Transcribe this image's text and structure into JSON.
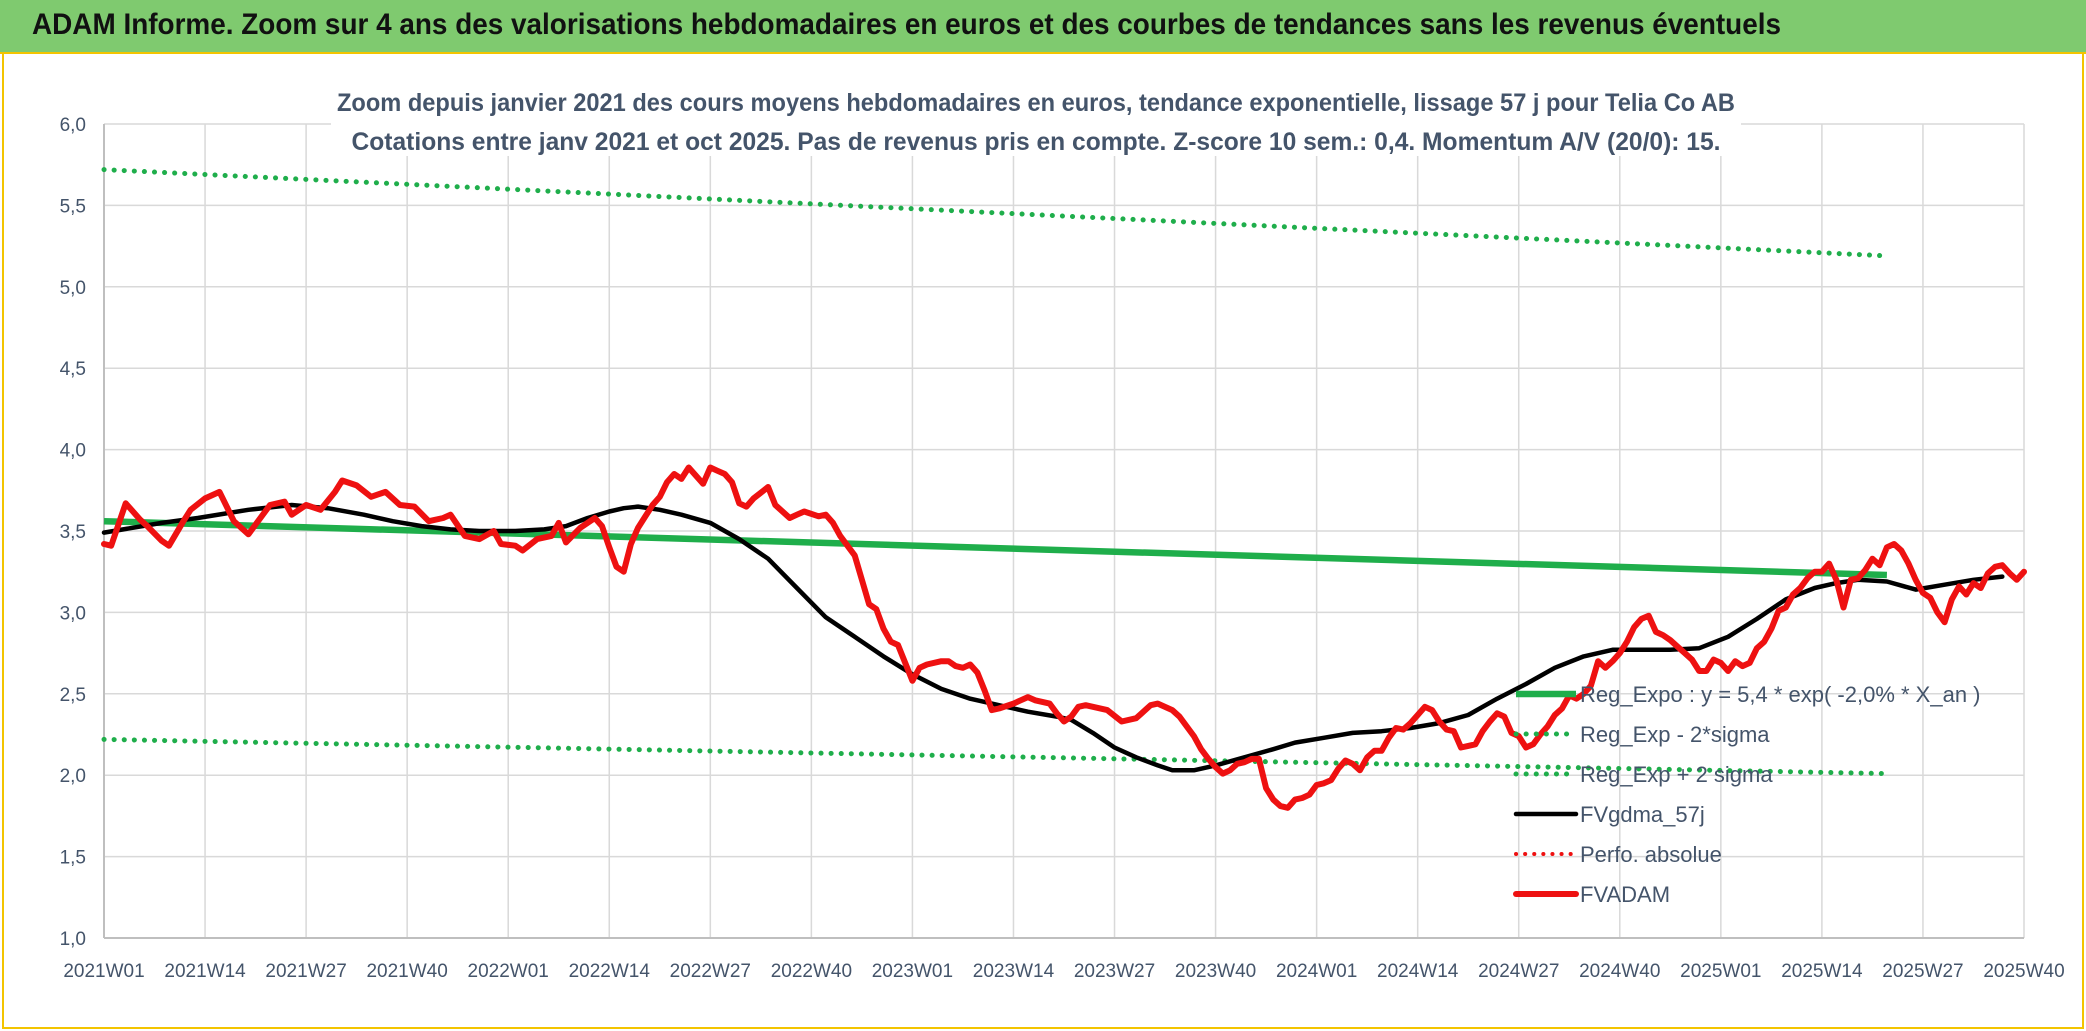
{
  "banner": {
    "title": "ADAM Informe. Zoom sur 4 ans des valorisations hebdomadaires en euros et des courbes de tendances sans les revenus éventuels"
  },
  "colors": {
    "banner_bg": "#7fca6f",
    "accent_border": "#f3c400",
    "reg_expo": "#1fae4b",
    "fvgdma": "#000000",
    "fvadam": "#ee1111",
    "perfo": "#ee1111",
    "grid": "#d9d9d9",
    "text": "#44546a"
  },
  "chart_data": {
    "type": "line",
    "title": "Zoom depuis janvier 2021 des cours moyens hebdomadaires en euros, tendance exponentielle, lissage 57 j pour Telia Co AB",
    "subtitle": "Cotations entre janv 2021 et oct 2025. Pas de revenus pris en compte. Z-score 10 sem.: 0,4. Momentum A/V (20/0): 15.",
    "xlabel": "",
    "ylabel": "",
    "ylim": [
      1.0,
      6.0
    ],
    "yticks": [
      "1,0",
      "1,5",
      "2,0",
      "2,5",
      "3,0",
      "3,5",
      "4,0",
      "4,5",
      "5,0",
      "5,5",
      "6,0"
    ],
    "x_tick_labels": [
      "2021W01",
      "2021W14",
      "2021W27",
      "2021W40",
      "2022W01",
      "2022W14",
      "2022W27",
      "2022W40",
      "2023W01",
      "2023W14",
      "2023W27",
      "2023W40",
      "2024W01",
      "2024W14",
      "2024W27",
      "2024W40",
      "2025W01",
      "2025W14",
      "2025W27",
      "2025W40"
    ],
    "grid": true,
    "legend_position": "bottom-right",
    "series": [
      {
        "name": "Reg_Expo : y = 5,4 * exp( -2,0% *  X_an )",
        "style": "solid-thick-green",
        "points": [
          [
            0,
            3.56
          ],
          [
            247,
            3.23
          ]
        ]
      },
      {
        "name": "Reg_Exp - 2*sigma",
        "style": "dotted-green",
        "points": [
          [
            0,
            2.22
          ],
          [
            247,
            2.01
          ]
        ]
      },
      {
        "name": "Reg_Exp + 2 sigma",
        "style": "dotted-green",
        "points": [
          [
            0,
            5.72
          ],
          [
            247,
            5.19
          ]
        ]
      },
      {
        "name": "FVgdma_57j",
        "style": "solid-black",
        "points": [
          [
            0,
            3.49
          ],
          [
            8,
            3.55
          ],
          [
            13,
            3.58
          ],
          [
            20,
            3.63
          ],
          [
            26,
            3.66
          ],
          [
            31,
            3.64
          ],
          [
            36,
            3.6
          ],
          [
            40,
            3.56
          ],
          [
            44,
            3.53
          ],
          [
            48,
            3.51
          ],
          [
            52,
            3.5
          ],
          [
            57,
            3.5
          ],
          [
            61,
            3.51
          ],
          [
            64,
            3.53
          ],
          [
            67,
            3.58
          ],
          [
            70,
            3.62
          ],
          [
            72,
            3.64
          ],
          [
            74,
            3.65
          ],
          [
            77,
            3.63
          ],
          [
            80,
            3.6
          ],
          [
            84,
            3.55
          ],
          [
            88,
            3.45
          ],
          [
            92,
            3.33
          ],
          [
            96,
            3.15
          ],
          [
            100,
            2.97
          ],
          [
            104,
            2.85
          ],
          [
            108,
            2.73
          ],
          [
            112,
            2.62
          ],
          [
            116,
            2.53
          ],
          [
            120,
            2.47
          ],
          [
            124,
            2.43
          ],
          [
            128,
            2.39
          ],
          [
            132,
            2.36
          ],
          [
            134,
            2.34
          ],
          [
            137,
            2.26
          ],
          [
            140,
            2.17
          ],
          [
            143,
            2.11
          ],
          [
            146,
            2.06
          ],
          [
            148,
            2.03
          ],
          [
            151,
            2.03
          ],
          [
            154,
            2.06
          ],
          [
            158,
            2.11
          ],
          [
            162,
            2.16
          ],
          [
            165,
            2.2
          ],
          [
            169,
            2.23
          ],
          [
            173,
            2.26
          ],
          [
            177,
            2.27
          ],
          [
            181,
            2.29
          ],
          [
            185,
            2.32
          ],
          [
            189,
            2.37
          ],
          [
            193,
            2.47
          ],
          [
            197,
            2.56
          ],
          [
            201,
            2.66
          ],
          [
            205,
            2.73
          ],
          [
            209,
            2.77
          ],
          [
            213,
            2.77
          ],
          [
            217,
            2.77
          ],
          [
            221,
            2.78
          ],
          [
            225,
            2.85
          ],
          [
            229,
            2.96
          ],
          [
            233,
            3.08
          ],
          [
            237,
            3.15
          ],
          [
            240,
            3.18
          ],
          [
            243,
            3.2
          ],
          [
            247,
            3.19
          ],
          [
            251,
            3.14
          ],
          [
            255,
            3.17
          ],
          [
            259,
            3.2
          ],
          [
            263,
            3.22
          ]
        ]
      },
      {
        "name": "Perfo. absolue",
        "style": "dotted-red",
        "points": []
      },
      {
        "name": "FVADAM",
        "style": "solid-thick-red",
        "points": [
          [
            0,
            3.42
          ],
          [
            1,
            3.41
          ],
          [
            3,
            3.67
          ],
          [
            5,
            3.57
          ],
          [
            6,
            3.53
          ],
          [
            8,
            3.44
          ],
          [
            9,
            3.41
          ],
          [
            11,
            3.56
          ],
          [
            12,
            3.63
          ],
          [
            14,
            3.7
          ],
          [
            16,
            3.74
          ],
          [
            18,
            3.56
          ],
          [
            20,
            3.48
          ],
          [
            21,
            3.54
          ],
          [
            23,
            3.66
          ],
          [
            25,
            3.68
          ],
          [
            26,
            3.6
          ],
          [
            28,
            3.66
          ],
          [
            30,
            3.63
          ],
          [
            32,
            3.74
          ],
          [
            33,
            3.81
          ],
          [
            35,
            3.78
          ],
          [
            37,
            3.71
          ],
          [
            39,
            3.74
          ],
          [
            41,
            3.66
          ],
          [
            43,
            3.65
          ],
          [
            45,
            3.56
          ],
          [
            47,
            3.58
          ],
          [
            48,
            3.6
          ],
          [
            50,
            3.47
          ],
          [
            52,
            3.45
          ],
          [
            54,
            3.5
          ],
          [
            55,
            3.42
          ],
          [
            57,
            3.41
          ],
          [
            58,
            3.38
          ],
          [
            60,
            3.45
          ],
          [
            62,
            3.47
          ],
          [
            63,
            3.55
          ],
          [
            64,
            3.43
          ],
          [
            66,
            3.52
          ],
          [
            68,
            3.58
          ],
          [
            69,
            3.53
          ],
          [
            70,
            3.4
          ],
          [
            71,
            3.28
          ],
          [
            72,
            3.25
          ],
          [
            73,
            3.42
          ],
          [
            74,
            3.52
          ],
          [
            75,
            3.59
          ],
          [
            76,
            3.66
          ],
          [
            77,
            3.71
          ],
          [
            78,
            3.8
          ],
          [
            79,
            3.85
          ],
          [
            80,
            3.82
          ],
          [
            81,
            3.89
          ],
          [
            82,
            3.84
          ],
          [
            83,
            3.79
          ],
          [
            84,
            3.89
          ],
          [
            85,
            3.87
          ],
          [
            86,
            3.85
          ],
          [
            87,
            3.8
          ],
          [
            88,
            3.67
          ],
          [
            89,
            3.65
          ],
          [
            90,
            3.7
          ],
          [
            92,
            3.77
          ],
          [
            93,
            3.66
          ],
          [
            95,
            3.58
          ],
          [
            96,
            3.6
          ],
          [
            97,
            3.62
          ],
          [
            99,
            3.59
          ],
          [
            100,
            3.6
          ],
          [
            101,
            3.55
          ],
          [
            102,
            3.47
          ],
          [
            104,
            3.35
          ],
          [
            105,
            3.2
          ],
          [
            106,
            3.05
          ],
          [
            107,
            3.02
          ],
          [
            108,
            2.9
          ],
          [
            109,
            2.82
          ],
          [
            110,
            2.8
          ],
          [
            112,
            2.58
          ],
          [
            113,
            2.66
          ],
          [
            114,
            2.68
          ],
          [
            116,
            2.7
          ],
          [
            117,
            2.7
          ],
          [
            118,
            2.67
          ],
          [
            119,
            2.66
          ],
          [
            120,
            2.68
          ],
          [
            121,
            2.63
          ],
          [
            122,
            2.52
          ],
          [
            123,
            2.4
          ],
          [
            124,
            2.41
          ],
          [
            126,
            2.44
          ],
          [
            127,
            2.46
          ],
          [
            128,
            2.48
          ],
          [
            129,
            2.46
          ],
          [
            131,
            2.44
          ],
          [
            132,
            2.38
          ],
          [
            133,
            2.33
          ],
          [
            134,
            2.36
          ],
          [
            135,
            2.42
          ],
          [
            136,
            2.43
          ],
          [
            137,
            2.42
          ],
          [
            139,
            2.4
          ],
          [
            141,
            2.33
          ],
          [
            143,
            2.35
          ],
          [
            145,
            2.43
          ],
          [
            146,
            2.44
          ],
          [
            148,
            2.4
          ],
          [
            149,
            2.36
          ],
          [
            151,
            2.24
          ],
          [
            152,
            2.16
          ],
          [
            153,
            2.1
          ],
          [
            154,
            2.05
          ],
          [
            155,
            2.01
          ],
          [
            156,
            2.03
          ],
          [
            157,
            2.07
          ],
          [
            158,
            2.08
          ],
          [
            159,
            2.1
          ],
          [
            160,
            2.1
          ],
          [
            161,
            1.92
          ],
          [
            162,
            1.85
          ],
          [
            163,
            1.81
          ],
          [
            164,
            1.8
          ],
          [
            165,
            1.85
          ],
          [
            166,
            1.86
          ],
          [
            167,
            1.88
          ],
          [
            168,
            1.94
          ],
          [
            169,
            1.95
          ],
          [
            170,
            1.97
          ],
          [
            171,
            2.04
          ],
          [
            172,
            2.09
          ],
          [
            173,
            2.07
          ],
          [
            174,
            2.03
          ],
          [
            175,
            2.11
          ],
          [
            176,
            2.15
          ],
          [
            177,
            2.15
          ],
          [
            178,
            2.23
          ],
          [
            179,
            2.29
          ],
          [
            180,
            2.28
          ],
          [
            181,
            2.32
          ],
          [
            182,
            2.37
          ],
          [
            183,
            2.42
          ],
          [
            184,
            2.4
          ],
          [
            185,
            2.33
          ],
          [
            186,
            2.28
          ],
          [
            187,
            2.27
          ],
          [
            188,
            2.17
          ],
          [
            189,
            2.18
          ],
          [
            190,
            2.19
          ],
          [
            191,
            2.27
          ],
          [
            192,
            2.33
          ],
          [
            193,
            2.38
          ],
          [
            194,
            2.36
          ],
          [
            195,
            2.26
          ],
          [
            196,
            2.24
          ],
          [
            197,
            2.17
          ],
          [
            198,
            2.19
          ],
          [
            199,
            2.25
          ],
          [
            200,
            2.3
          ],
          [
            201,
            2.37
          ],
          [
            202,
            2.41
          ],
          [
            203,
            2.49
          ],
          [
            204,
            2.47
          ],
          [
            205,
            2.5
          ],
          [
            206,
            2.55
          ],
          [
            207,
            2.7
          ],
          [
            208,
            2.66
          ],
          [
            209,
            2.7
          ],
          [
            210,
            2.75
          ],
          [
            211,
            2.82
          ],
          [
            212,
            2.91
          ],
          [
            213,
            2.96
          ],
          [
            214,
            2.98
          ],
          [
            215,
            2.88
          ],
          [
            216,
            2.86
          ],
          [
            217,
            2.83
          ],
          [
            218,
            2.79
          ],
          [
            219,
            2.75
          ],
          [
            220,
            2.71
          ],
          [
            221,
            2.64
          ],
          [
            222,
            2.64
          ],
          [
            223,
            2.71
          ],
          [
            224,
            2.69
          ],
          [
            225,
            2.64
          ],
          [
            226,
            2.7
          ],
          [
            227,
            2.67
          ],
          [
            228,
            2.69
          ],
          [
            229,
            2.78
          ],
          [
            230,
            2.82
          ],
          [
            231,
            2.9
          ],
          [
            232,
            3.01
          ],
          [
            233,
            3.03
          ],
          [
            234,
            3.11
          ],
          [
            235,
            3.15
          ],
          [
            236,
            3.21
          ],
          [
            237,
            3.25
          ],
          [
            238,
            3.25
          ],
          [
            239,
            3.3
          ],
          [
            240,
            3.2
          ],
          [
            241,
            3.03
          ],
          [
            242,
            3.2
          ],
          [
            243,
            3.21
          ],
          [
            244,
            3.26
          ],
          [
            245,
            3.33
          ],
          [
            246,
            3.29
          ],
          [
            247,
            3.4
          ],
          [
            248,
            3.42
          ],
          [
            249,
            3.38
          ],
          [
            250,
            3.3
          ],
          [
            251,
            3.2
          ],
          [
            252,
            3.12
          ],
          [
            253,
            3.09
          ],
          [
            254,
            3.0
          ],
          [
            255,
            2.94
          ],
          [
            256,
            3.08
          ],
          [
            257,
            3.16
          ],
          [
            258,
            3.11
          ],
          [
            259,
            3.18
          ],
          [
            260,
            3.15
          ],
          [
            261,
            3.24
          ],
          [
            262,
            3.28
          ],
          [
            263,
            3.29
          ],
          [
            264,
            3.24
          ],
          [
            265,
            3.2
          ],
          [
            266,
            3.25
          ]
        ]
      }
    ]
  }
}
